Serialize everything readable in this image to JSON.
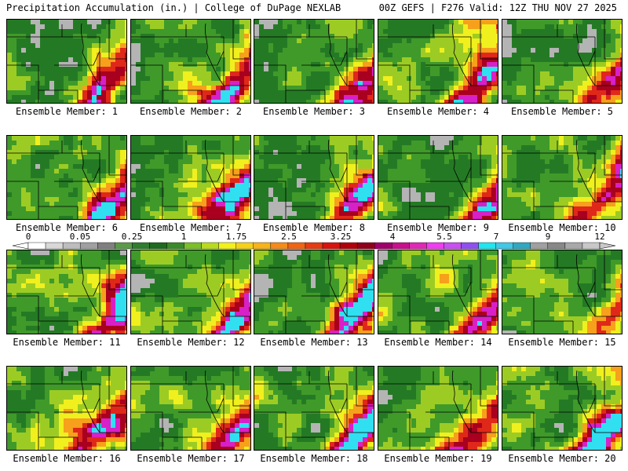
{
  "header": {
    "left": "Precipitation Accumulation (in.) | College of DuPage NEXLAB",
    "right": "00Z GEFS | F276 Valid: 12Z THU NOV 27 2025"
  },
  "panels": [
    {
      "label": "Ensemble Member: 1"
    },
    {
      "label": "Ensemble Member: 2"
    },
    {
      "label": "Ensemble Member: 3"
    },
    {
      "label": "Ensemble Member: 4"
    },
    {
      "label": "Ensemble Member: 5"
    },
    {
      "label": "Ensemble Member: 6"
    },
    {
      "label": "Ensemble Member: 7"
    },
    {
      "label": "Ensemble Member: 8"
    },
    {
      "label": "Ensemble Member: 9"
    },
    {
      "label": "Ensemble Member: 10"
    },
    {
      "label": "Ensemble Member: 11"
    },
    {
      "label": "Ensemble Member: 12"
    },
    {
      "label": "Ensemble Member: 13"
    },
    {
      "label": "Ensemble Member: 14"
    },
    {
      "label": "Ensemble Member: 15"
    },
    {
      "label": "Ensemble Member: 16"
    },
    {
      "label": "Ensemble Member: 17"
    },
    {
      "label": "Ensemble Member: 18"
    },
    {
      "label": "Ensemble Member: 19"
    },
    {
      "label": "Ensemble Member: 20"
    }
  ],
  "colorbar": {
    "labels": [
      "0",
      "0.05",
      "0.25",
      "1",
      "1.75",
      "2.5",
      "3.25",
      "4",
      "5.5",
      "7",
      "9",
      "12"
    ],
    "colors": [
      "#ffffff",
      "#d8d8d8",
      "#bdbdbd",
      "#a0a0a0",
      "#7f7f7f",
      "#5a9a4a",
      "#2f7d2f",
      "#1e6a1e",
      "#3a8a2a",
      "#7bbf2a",
      "#b8dc1c",
      "#f2f21a",
      "#f5d21a",
      "#f7b31a",
      "#f58c1a",
      "#f06414",
      "#e63c14",
      "#d8140f",
      "#b0000a",
      "#90001a",
      "#a0006a",
      "#c8108c",
      "#e028b4",
      "#f03cf0",
      "#c850f0",
      "#9050f0",
      "#20e6f0",
      "#40c8e6",
      "#30a8c0",
      "#a0a0a0",
      "#888888",
      "#a8a8a8",
      "#c8c8c8"
    ]
  },
  "legend_palette": {
    "grey_low": "#b4b4b4",
    "green_dark": "#247a24",
    "green": "#3f9a2a",
    "yellow_green": "#9ccc24",
    "yellow": "#f0f01e",
    "orange": "#f6a01c",
    "red": "#e0281a",
    "dark_red": "#a8001e",
    "magenta": "#d820c8",
    "cyan": "#30e0f0"
  }
}
